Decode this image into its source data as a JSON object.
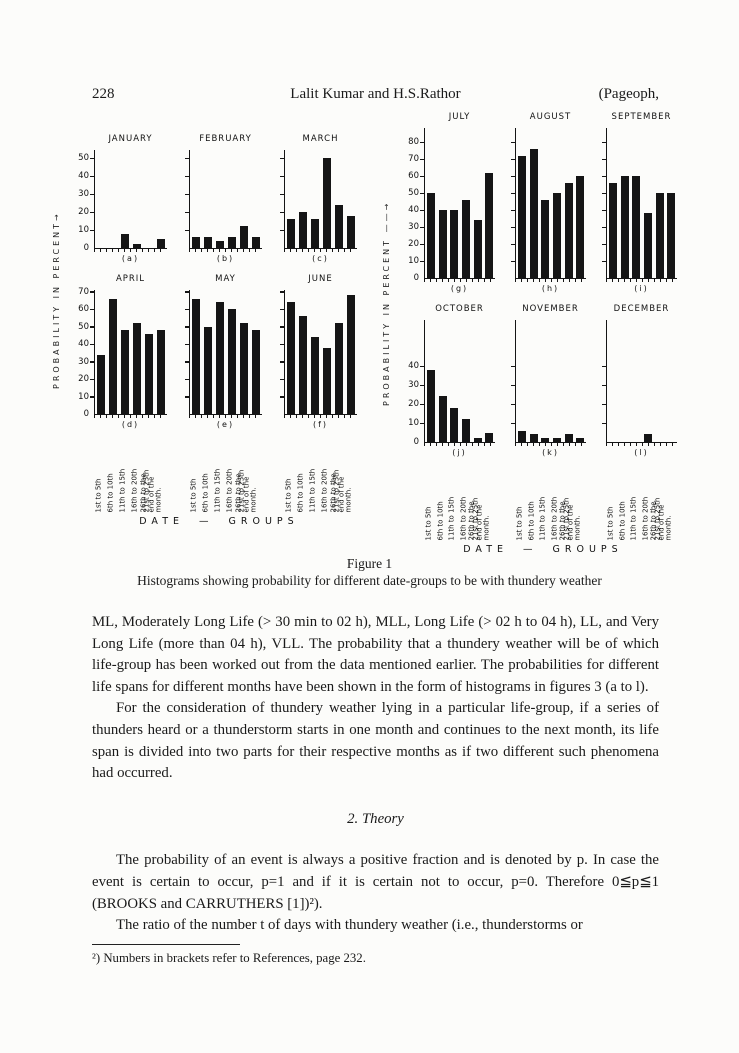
{
  "page": {
    "number": "228",
    "running_head": "Lalit Kumar and H.S.Rathor",
    "journal": "(Pageoph,"
  },
  "figure": {
    "caption_label": "Figure 1",
    "caption": "Histograms showing probability for different date-groups to be with thundery weather",
    "y_axis_label_left": "PROBABILITY IN PERCENT→",
    "y_axis_label_right": "PROBABILITY IN PERCENT ——→",
    "x_axis_title": "DATE — GROUPS",
    "date_groups": [
      "1st to 5th",
      "6th to 10th",
      "11th to 15th",
      "16th to 20th",
      "21st to 25th",
      "26th to the end of the month."
    ]
  },
  "chart_data": [
    {
      "type": "bar",
      "month": "JANUARY",
      "panel": "(a)",
      "group": "left",
      "row": 0,
      "values": [
        0,
        0,
        8,
        2,
        0,
        5
      ],
      "yticks": [
        0,
        10,
        20,
        30,
        40,
        50
      ],
      "ylim": [
        0,
        50
      ],
      "show_tick_labels": true
    },
    {
      "type": "bar",
      "month": "FEBRUARY",
      "panel": "(b)",
      "group": "left",
      "row": 0,
      "values": [
        6,
        6,
        4,
        6,
        12,
        6
      ],
      "yticks": [
        0,
        10,
        20,
        30,
        40,
        50
      ],
      "ylim": [
        0,
        50
      ],
      "show_tick_labels": false
    },
    {
      "type": "bar",
      "month": "MARCH",
      "panel": "(c)",
      "group": "left",
      "row": 0,
      "values": [
        16,
        20,
        16,
        50,
        24,
        18
      ],
      "yticks": [
        0,
        10,
        20,
        30,
        40,
        50
      ],
      "ylim": [
        0,
        50
      ],
      "show_tick_labels": false
    },
    {
      "type": "bar",
      "month": "APRIL",
      "panel": "(d)",
      "group": "left",
      "row": 1,
      "values": [
        34,
        66,
        48,
        52,
        46,
        48
      ],
      "yticks": [
        0,
        10,
        20,
        30,
        40,
        50,
        60,
        70
      ],
      "ylim": [
        0,
        70
      ],
      "show_tick_labels": true
    },
    {
      "type": "bar",
      "month": "MAY",
      "panel": "(e)",
      "group": "left",
      "row": 1,
      "values": [
        66,
        50,
        64,
        60,
        52,
        48
      ],
      "yticks": [
        0,
        10,
        20,
        30,
        40,
        50,
        60,
        70
      ],
      "ylim": [
        0,
        70
      ],
      "show_tick_labels": false
    },
    {
      "type": "bar",
      "month": "JUNE",
      "panel": "(f)",
      "group": "left",
      "row": 1,
      "values": [
        64,
        56,
        44,
        38,
        52,
        68
      ],
      "yticks": [
        0,
        10,
        20,
        30,
        40,
        50,
        60,
        70
      ],
      "ylim": [
        0,
        70
      ],
      "show_tick_labels": false
    },
    {
      "type": "bar",
      "month": "JULY",
      "panel": "(g)",
      "group": "right",
      "row": 0,
      "values": [
        50,
        40,
        40,
        46,
        34,
        62
      ],
      "yticks": [
        0,
        10,
        20,
        30,
        40,
        50,
        60,
        70,
        80
      ],
      "ylim": [
        0,
        80
      ],
      "show_tick_labels": true
    },
    {
      "type": "bar",
      "month": "AUGUST",
      "panel": "(h)",
      "group": "right",
      "row": 0,
      "values": [
        72,
        76,
        46,
        50,
        56,
        60
      ],
      "yticks": [
        0,
        10,
        20,
        30,
        40,
        50,
        60,
        70,
        80
      ],
      "ylim": [
        0,
        80
      ],
      "show_tick_labels": false
    },
    {
      "type": "bar",
      "month": "SEPTEMBER",
      "panel": "(i)",
      "group": "right",
      "row": 0,
      "values": [
        56,
        60,
        60,
        38,
        50,
        50
      ],
      "yticks": [
        0,
        10,
        20,
        30,
        40,
        50,
        60,
        70,
        80
      ],
      "ylim": [
        0,
        80
      ],
      "show_tick_labels": false
    },
    {
      "type": "bar",
      "month": "OCTOBER",
      "panel": "(j)",
      "group": "right",
      "row": 1,
      "values": [
        38,
        24,
        18,
        12,
        2,
        5
      ],
      "yticks": [
        0,
        10,
        20,
        30,
        40
      ],
      "ylim": [
        0,
        40
      ],
      "show_tick_labels": true
    },
    {
      "type": "bar",
      "month": "NOVEMBER",
      "panel": "(k)",
      "group": "right",
      "row": 1,
      "values": [
        6,
        4,
        2,
        2,
        4,
        2
      ],
      "yticks": [
        0,
        10,
        20,
        30,
        40
      ],
      "ylim": [
        0,
        40
      ],
      "show_tick_labels": false
    },
    {
      "type": "bar",
      "month": "DECEMBER",
      "panel": "(l)",
      "group": "right",
      "row": 1,
      "values": [
        0,
        0,
        0,
        4,
        0,
        0
      ],
      "yticks": [
        0,
        10,
        20,
        30,
        40
      ],
      "ylim": [
        0,
        40
      ],
      "show_tick_labels": false
    }
  ],
  "body": {
    "paragraphs": [
      "ML, Moderately Long Life (> 30 min to 02 h), MLL, Long Life (> 02 h to 04 h), LL, and Very Long Life (more than 04 h), VLL. The probability that a thundery weather will be of which life-group has been worked out from the data mentioned earlier. The probabilities for different life spans for different months have been shown in the form of histograms in figures 3 (a to l).",
      "For the consideration of thundery weather lying in a particular life-group, if a series of thunders heard or a thunderstorm starts in one month and continues to the next month, its life span is divided into two parts for their respective months as if two different such phenomena had occurred."
    ]
  },
  "theory": {
    "heading": "2. Theory",
    "paragraphs": [
      "The probability of an event is always a positive fraction and is denoted by p. In case the event is certain to occur, p=1 and if it is certain not to occur, p=0. Therefore 0≦p≦1 (BROOKS and CARRUTHERS [1])²).",
      "The ratio of the number t of days with thundery weather (i.e., thunderstorms or"
    ]
  },
  "footnote": {
    "marker": "²)",
    "text": "Numbers in brackets refer to References, page 232."
  }
}
